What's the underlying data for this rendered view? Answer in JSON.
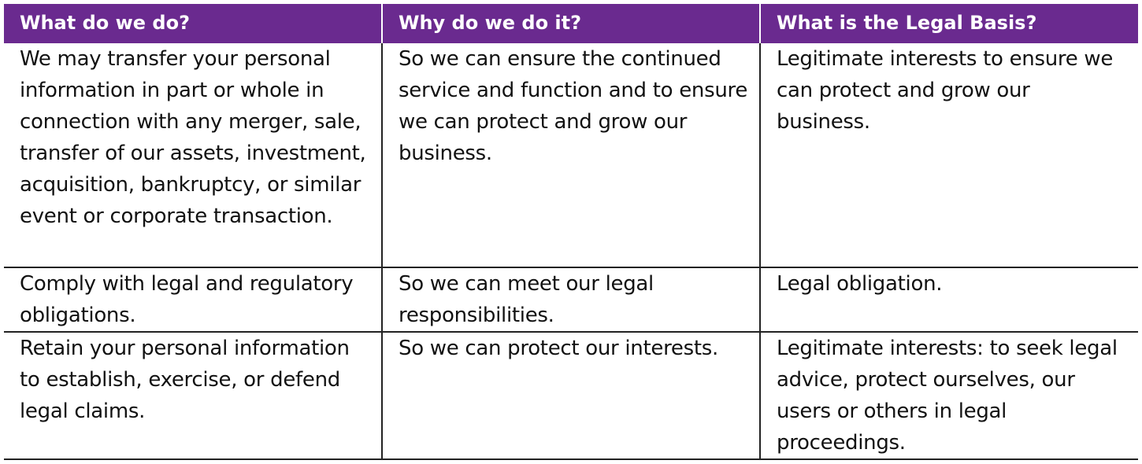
{
  "table": {
    "header": [
      "What do we do?",
      "Why do we do it?",
      "What is the Legal Basis?"
    ],
    "rows": [
      [
        "We may transfer your personal information in part or whole in connection with any merger, sale, transfer of our assets, investment, acquisition, bankruptcy, or similar event or corporate transaction.",
        "So we can ensure the continued service and function and to ensure we can protect and grow our business.",
        "Legitimate interests to ensure we can protect and grow our business."
      ],
      [
        "Comply with legal and regulatory obligations.",
        "So we can meet our legal responsibilities.",
        "Legal obligation."
      ],
      [
        "Retain your personal information to establish, exercise, or defend legal claims.",
        "So we can protect our interests.",
        "Legitimate interests: to seek legal advice, protect ourselves, our users or others in legal proceedings."
      ]
    ]
  }
}
